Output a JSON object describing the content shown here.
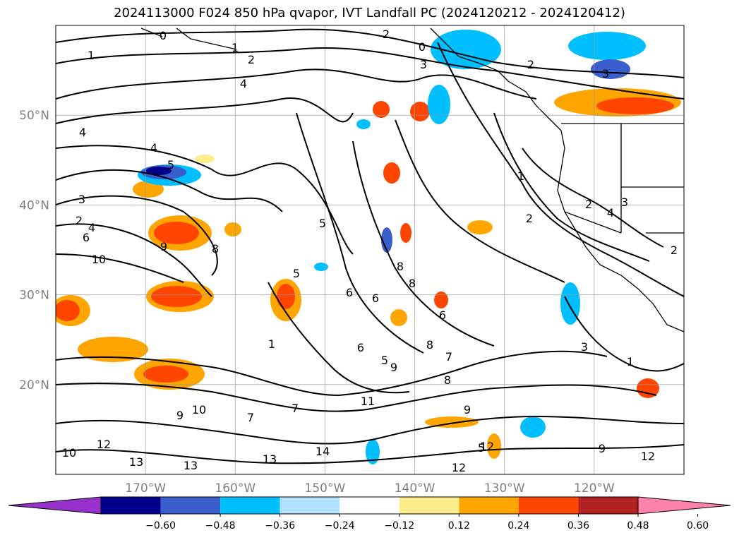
{
  "title": "2024113000 F024 850 hPa qvapor, IVT Landfall PC (2024120212 - 2024120412)",
  "map": {
    "lon_range": [
      -180,
      -110
    ],
    "lat_range": [
      10,
      60
    ],
    "lat_labels": [
      "50°N",
      "40°N",
      "30°N",
      "20°N"
    ],
    "lat_values": [
      50,
      40,
      30,
      20
    ],
    "lon_labels": [
      "170°W",
      "160°W",
      "150°W",
      "140°W",
      "130°W",
      "120°W"
    ],
    "lon_values": [
      -170,
      -160,
      -150,
      -140,
      -130,
      -120
    ],
    "grid": true,
    "contour_labels": [
      "0",
      "1",
      "1",
      "2",
      "2",
      "3",
      "4",
      "4",
      "4",
      "5",
      "3",
      "2",
      "4",
      "6",
      "10",
      "9",
      "8",
      "5",
      "5",
      "8",
      "8",
      "6",
      "6",
      "5",
      "8",
      "7",
      "9",
      "8",
      "11",
      "9",
      "5",
      "12",
      "13",
      "13",
      "13",
      "14",
      "12",
      "10",
      "12",
      "10",
      "9",
      "7",
      "7",
      "6",
      "6",
      "1",
      "0",
      "1",
      "2",
      "2",
      "3",
      "2",
      "3",
      "4",
      "2",
      "3",
      "1",
      "9",
      "12"
    ]
  },
  "colorbar": {
    "ticks": [
      "−0.60",
      "−0.48",
      "−0.36",
      "−0.24",
      "−0.12",
      "0.12",
      "0.24",
      "0.36",
      "0.48",
      "0.60"
    ],
    "colors": [
      "#9932cc",
      "#00008b",
      "#3a5fcd",
      "#00bfff",
      "#b0e2ff",
      "#ffffff",
      "#ffec8b",
      "#ffa500",
      "#ff4500",
      "#b22222",
      "#ff82ab"
    ]
  }
}
